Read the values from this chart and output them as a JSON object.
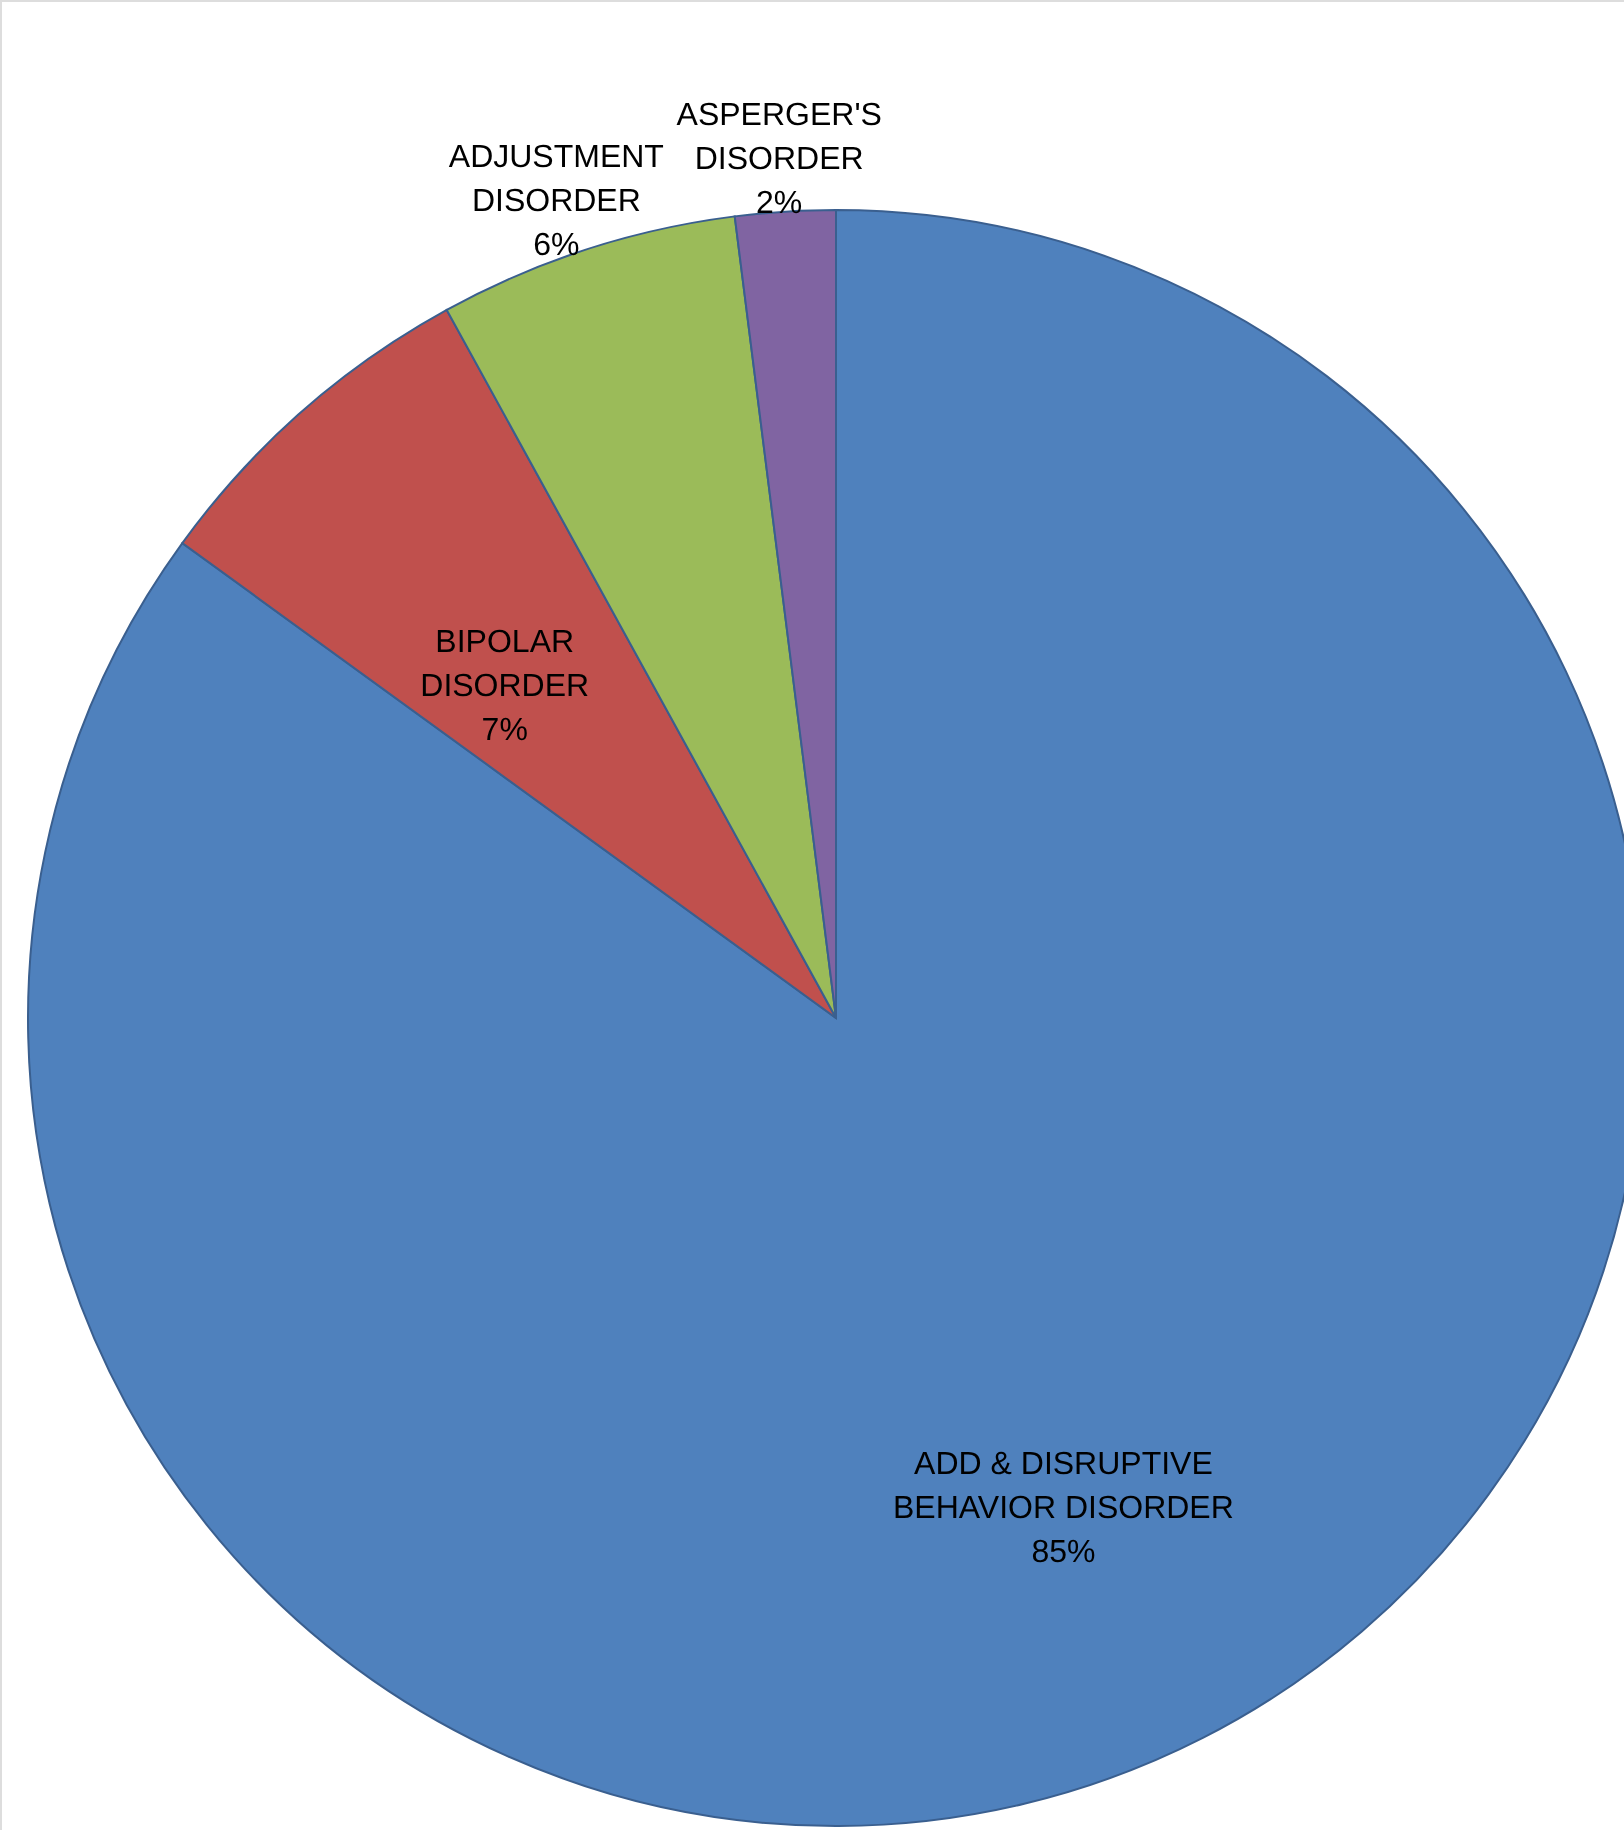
{
  "chart_data": {
    "type": "pie",
    "categories": [
      "ADD & DISRUPTIVE\nBEHAVIOR DISORDER",
      "BIPOLAR\nDISORDER",
      "ADJUSTMENT\nDISORDER",
      "ASPERGER'S\nDISORDER"
    ],
    "values": [
      85,
      7,
      6,
      2
    ],
    "value_labels": [
      "85%",
      "7%",
      "6%",
      "2%"
    ],
    "colors": [
      "#4f81bd",
      "#c0504d",
      "#9bbb59",
      "#8064a2"
    ]
  }
}
